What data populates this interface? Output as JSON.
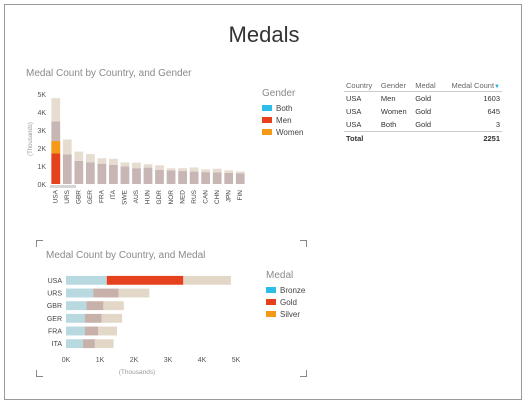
{
  "page": {
    "title": "Medals"
  },
  "colors": {
    "both": "#2cbde8",
    "men": "#e5411d",
    "women": "#f59a17",
    "bronze": "#2cbde8",
    "gold": "#e5411d",
    "silver": "#f59a17"
  },
  "chart_data": [
    {
      "type": "bar",
      "title": "Medal Count by Country, and Gender",
      "ylabel": "(Thousands)",
      "ylim": [
        0,
        5000
      ],
      "yticks": [
        "0K",
        "1K",
        "2K",
        "3K",
        "4K",
        "5K"
      ],
      "categories": [
        "USA",
        "URS",
        "GBR",
        "GER",
        "FRA",
        "ITA",
        "SWE",
        "AUS",
        "HUN",
        "GDR",
        "NOR",
        "NED",
        "RUS",
        "CAN",
        "CHN",
        "JPN",
        "FIN"
      ],
      "series": [
        {
          "name": "Both",
          "values": [
            0,
            0,
            0,
            0,
            0,
            0,
            0,
            0,
            0,
            0,
            0,
            0,
            0,
            0,
            0,
            0,
            0
          ]
        },
        {
          "name": "Men",
          "values": [
            3470,
            1650,
            1280,
            1210,
            1130,
            1070,
            980,
            880,
            910,
            790,
            760,
            720,
            690,
            660,
            640,
            620,
            600
          ]
        },
        {
          "name": "Women",
          "values": [
            1300,
            820,
            520,
            450,
            300,
            330,
            220,
            310,
            190,
            250,
            110,
            160,
            230,
            150,
            210,
            140,
            90
          ]
        }
      ],
      "highlight": {
        "category": "USA",
        "Men": 1603,
        "Women": 645,
        "Both": 3
      },
      "legend": {
        "title": "Gender",
        "placement": "right"
      }
    },
    {
      "type": "bar",
      "orientation": "horizontal",
      "title": "Medal Count by Country, and Medal",
      "xlabel": "(Thousands)",
      "xlim": [
        0,
        5000
      ],
      "xticks": [
        "0K",
        "1K",
        "2K",
        "3K",
        "4K",
        "5K"
      ],
      "categories": [
        "USA",
        "URS",
        "GBR",
        "GER",
        "FRA",
        "ITA"
      ],
      "series": [
        {
          "name": "Bronze",
          "values": [
            1200,
            800,
            600,
            550,
            550,
            500
          ]
        },
        {
          "name": "Gold",
          "values": [
            2250,
            750,
            500,
            500,
            400,
            350
          ]
        },
        {
          "name": "Silver",
          "values": [
            1400,
            900,
            600,
            600,
            550,
            550
          ]
        }
      ],
      "highlight": {
        "category": "USA",
        "series": "Gold"
      },
      "legend": {
        "title": "Medal",
        "placement": "right"
      }
    }
  ],
  "table": {
    "headers": [
      "Country",
      "Gender",
      "Medal",
      "Medal Count"
    ],
    "rows": [
      [
        "USA",
        "Men",
        "Gold",
        "1603"
      ],
      [
        "USA",
        "Women",
        "Gold",
        "645"
      ],
      [
        "USA",
        "Both",
        "Gold",
        "3"
      ]
    ],
    "total": {
      "label": "Total",
      "value": "2251"
    }
  }
}
